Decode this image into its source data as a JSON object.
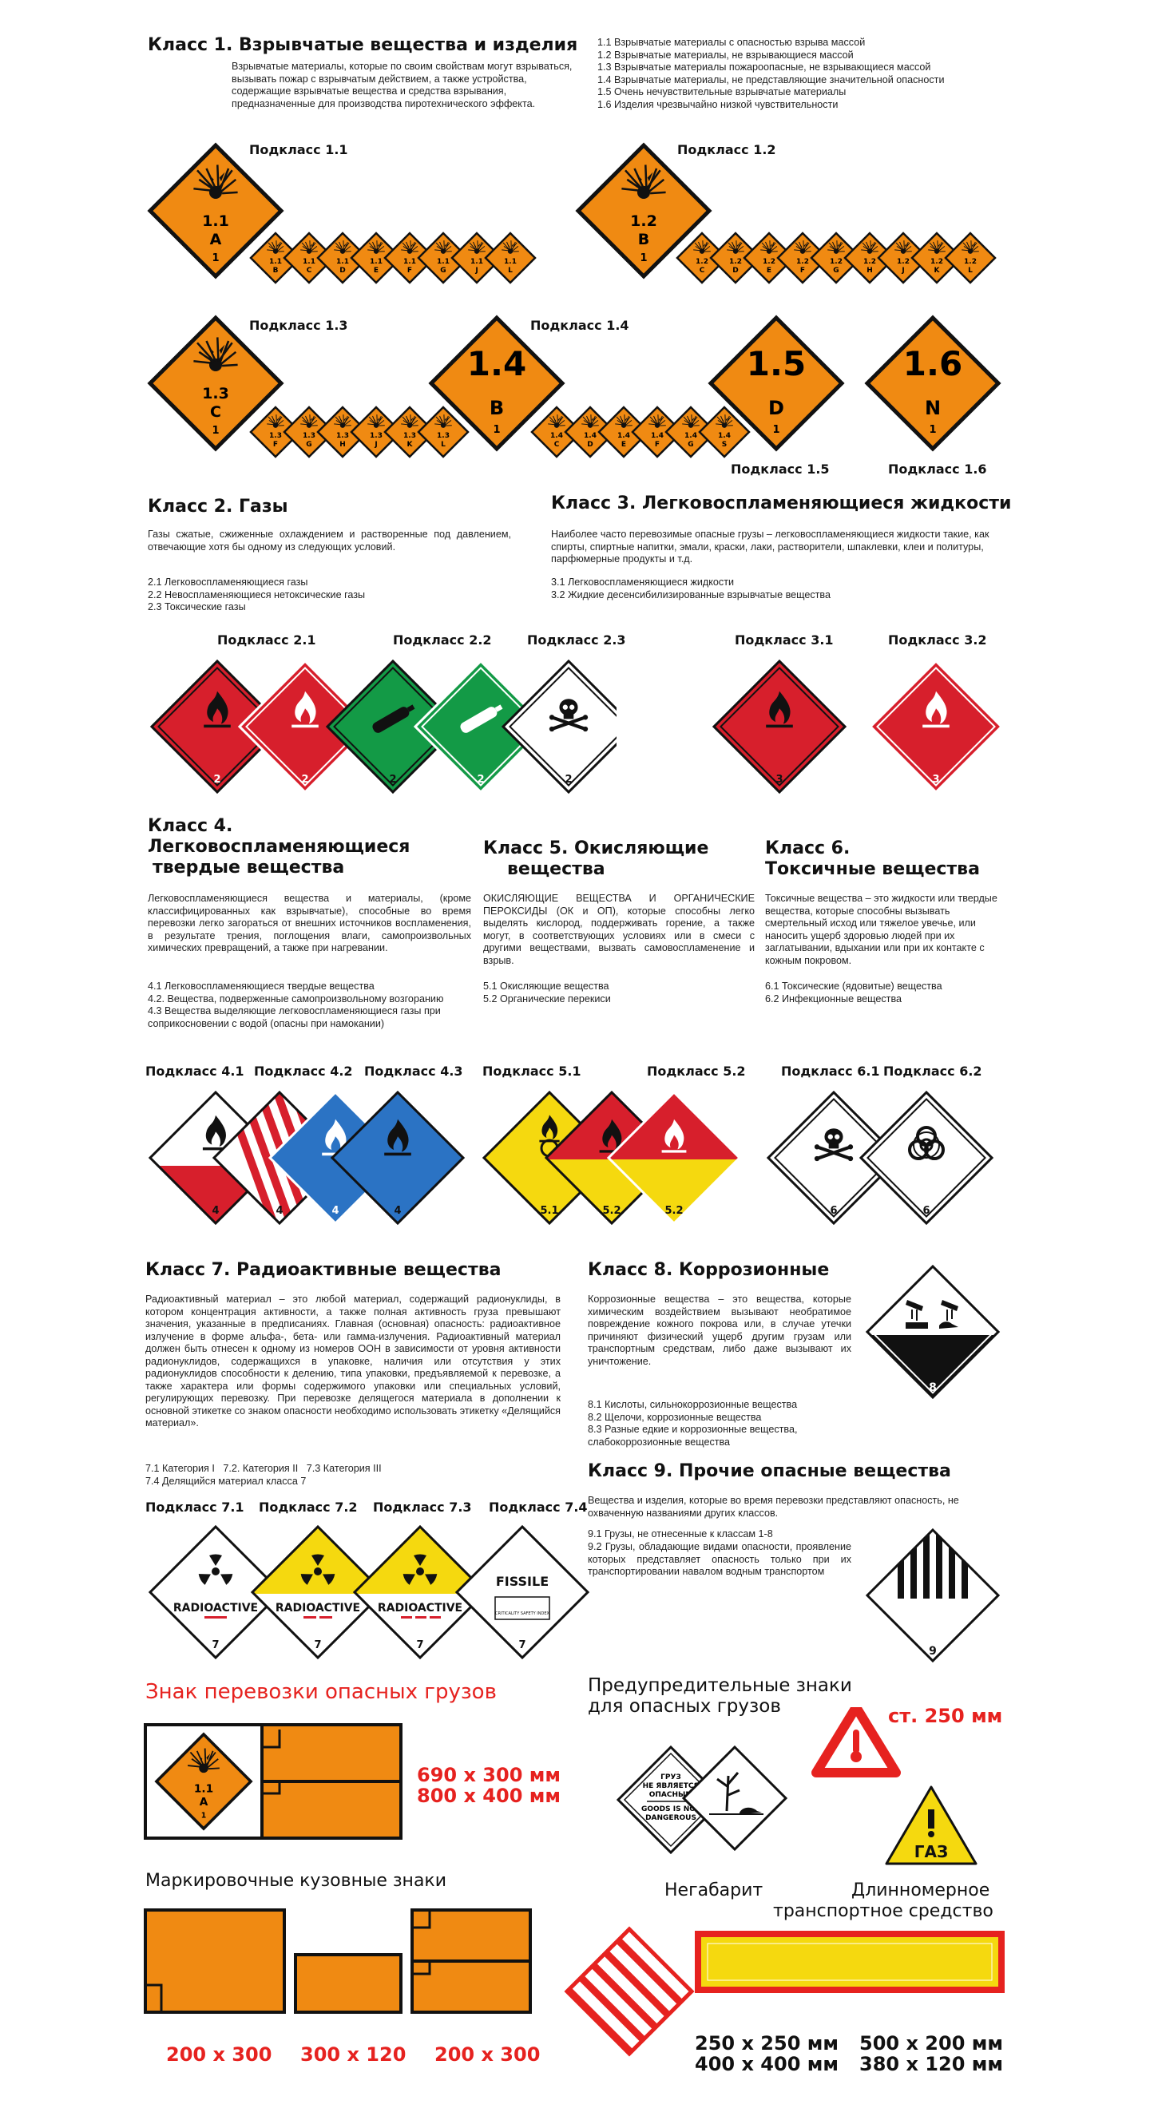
{
  "class1": {
    "title": "Класс 1. Взрывчатые вещества и изделия",
    "desc": "Взрывчатые материалы, которые по своим свойствам могут взрываться, вызывать пожар с взрывчатым действием, а также устройства, содержащие взрывчатые вещества и средства взрывания, предназначенные для производства пиротехнического эффекта.",
    "list": [
      "1.1 Взрывчатые материалы с опасностью взрыва массой",
      "1.2 Взрывчатые материалы, не взрывающиеся массой",
      "1.3 Взрывчатые материалы пожароопасные, не взрывающиеся массой",
      "1.4 Взрывчатые материалы, не представляющие значительной опасности",
      "1.5 Очень нечувствительные взрывчатые материалы",
      "1.6 Изделия чрезвычайно низкой чувствительности"
    ],
    "sub11": "Подкласс 1.1",
    "sub12": "Подкласс 1.2",
    "sub13": "Подкласс 1.3",
    "sub14": "Подкласс 1.4",
    "sub15": "Подкласс 1.5",
    "sub16": "Подкласс 1.6",
    "sign11": {
      "num": "1.1",
      "letter": "A",
      "cls": "1"
    },
    "sign12": {
      "num": "1.2",
      "letter": "B",
      "cls": "1"
    },
    "sign13": {
      "num": "1.3",
      "letter": "C",
      "cls": "1"
    },
    "sign14": {
      "num": "1.4",
      "letter": "B",
      "cls": "1"
    },
    "sign15": {
      "num": "1.5",
      "letter": "D",
      "cls": "1"
    },
    "sign16": {
      "num": "1.6",
      "letter": "N",
      "cls": "1"
    },
    "mini11": [
      "B",
      "C",
      "D",
      "E",
      "F",
      "G",
      "J",
      "L"
    ],
    "mini12": [
      "C",
      "D",
      "E",
      "F",
      "G",
      "H",
      "J",
      "K",
      "L"
    ],
    "mini13": [
      "F",
      "G",
      "H",
      "J",
      "K",
      "L"
    ],
    "mini14": [
      "C",
      "D",
      "E",
      "F",
      "G",
      "S"
    ]
  },
  "class2": {
    "title": "Класс 2. Газы",
    "desc": "Газы сжатые, сжиженные охлаждением и растворенные под давлением, отвечающие хотя бы одному из следующих условий.",
    "list": [
      "2.1 Легковоспламеняющиеся газы",
      "2.2 Невоспламеняющиеся нетоксические газы",
      "2.3 Токсические газы"
    ],
    "sub21": "Подкласс 2.1",
    "sub22": "Подкласс 2.2",
    "sub23": "Подкласс 2.3",
    "num": "2"
  },
  "class3": {
    "title": "Класс 3. Легковоспламеняющиеся жидкости",
    "desc": "Наиболее часто перевозимые опасные грузы – легковоспламеняющиеся жидкости такие, как спирты, спиртные напитки, эмали, краски, лаки, растворители, шпаклевки, клеи и политуры, парфюмерные продукты и т.д.",
    "list": [
      "3.1 Легковоспламеняющиеся жидкости",
      "3.2 Жидкие десенсибилизированные взрывчатые вещества"
    ],
    "sub31": "Подкласс 3.1",
    "sub32": "Подкласс 3.2",
    "num": "3"
  },
  "class4": {
    "title1": "Класс 4.",
    "title2": "Легковоспламеняющиеся",
    "title3": "твердые вещества",
    "desc": "Легковоспламеняющиеся вещества и материалы, (кроме классифицированных как взрывчатые), способные во время перевозки легко загораться от внешних источников воспламенения, в результате трения, поглощения влаги, самопроизвольных химических превращений, а также при нагревании.",
    "list": [
      "4.1 Легковоспламеняющиеся твердые вещества",
      "4.2. Вещества, подверженные самопроизвольному возгоранию",
      "4.3 Вещества выделяющие легковоспламеняющиеся газы при соприкосновении с водой (опасны при намокании)"
    ],
    "sub41": "Подкласс 4.1",
    "sub42": "Подкласс 4.2",
    "sub43": "Подкласс 4.3",
    "num": "4"
  },
  "class5": {
    "title1": "Класс 5. Окисляющие",
    "title2": "вещества",
    "desc": "ОКИСЛЯЮЩИЕ ВЕЩЕСТВА И ОРГАНИЧЕСКИЕ ПЕРОКСИДЫ (ОК и ОП), которые способны легко выделять кислород, поддерживать горение, а также могут, в соответствующих условиях или в смеси с другими веществами, вызвать самовоспламенение и взрыв.",
    "list": [
      "5.1 Окисляющие вещества",
      "5.2 Органические перекиси"
    ],
    "sub51": "Подкласс 5.1",
    "sub52": "Подкласс 5.2",
    "n51": "5.1",
    "n52": "5.2"
  },
  "class6": {
    "title1": "Класс 6.",
    "title2": "Токсичные вещества",
    "desc": "Токсичные вещества – это жидкости или твердые вещества, которые способны вызывать смертельный исход или тяжелое увечье, или наносить ущерб здоровью людей при их заглатывании, вдыхании или при их контакте с кожным покровом.",
    "list": [
      "6.1 Токсические (ядовитые) вещества",
      "6.2 Инфекционные вещества"
    ],
    "sub61": "Подкласс 6.1",
    "sub62": "Подкласс 6.2",
    "num": "6"
  },
  "class7": {
    "title": "Класс 7. Радиоактивные вещества",
    "desc": "Радиоактивный материал – это любой материал, содержащий радионуклиды, в котором концентрация активности, а также полная активность груза превышают значения, указанные в предписаниях. Главная (основная) опасность: радиоактивное излучение в форме альфа-, бета- или гамма-излучения. Радиоактивный материал должен быть отнесен к одному из номеров ООН в зависимости от уровня активности радионуклидов, содержащихся в упаковке, наличия или отсутствия у этих радионуклидов способности к делению, типа упаковки, предъявляемой к перевозке, а также характера или формы содержимого упаковки или специальных условий, регулирующих перевозку. При перевозке делящегося материала в дополнении к основной этикетке со знаком опасности необходимо использовать этикетку «Делящийся материал».",
    "list1": "7.1 Категория I   7.2. Категория II   7.3 Категория III",
    "list2": "7.4 Делящийся материал класса 7",
    "sub71": "Подкласс 7.1",
    "sub72": "Подкласс 7.2",
    "sub73": "Подкласс 7.3",
    "sub74": "Подкласс 7.4",
    "radioactive": "RADIOACTIVE",
    "fissile": "FISSILE",
    "criticality": "CRITICALITY SAFETY INDEX",
    "num": "7"
  },
  "class8": {
    "title": "Класс 8. Коррозионные",
    "desc": "Коррозионные вещества – это вещества, которые химическим воздействием вызывают необратимое повреждение кожного покрова или, в случае утечки причиняют физический ущерб другим грузам или транспортным средствам, либо даже вызывают их уничтожение.",
    "list": [
      "8.1 Кислоты, сильнокоррозионные вещества",
      "8.2 Щелочи, коррозионные вещества",
      "8.3 Разные едкие и коррозионные вещества, слабокоррозионные вещества"
    ],
    "num": "8"
  },
  "class9": {
    "title": "Класс 9. Прочие опасные вещества",
    "desc": "Вещества и изделия, которые во время перевозки представляют опасность, не охваченную названиями других классов.",
    "list1": "9.1 Грузы, не отнесенные к классам 1-8",
    "list2": "9.2 Грузы, обладающие видами опасности, проявление которых представляет опасность только при их транспортировании навалом водным транспортом",
    "num": "9"
  },
  "transport": {
    "title": "Знак перевозки опасных грузов",
    "size1": "690 x 300 мм",
    "size2": "800 x 400 мм",
    "sign": {
      "num": "1.1",
      "letter": "A",
      "cls": "1"
    }
  },
  "warning": {
    "title1": "Предупредительные знаки",
    "title2": "для опасных грузов",
    "size": "ст. 250 мм",
    "nd1": "ГРУЗ",
    "nd2": "НЕ ЯВЛЯЕТСЯ",
    "nd3": "ОПАСНЫМ",
    "nd4": "GOODS IS NOT",
    "nd5": "DANGEROUS",
    "gas": "ГАЗ"
  },
  "body_marks": {
    "title": "Маркировочные кузовные знаки",
    "s1": "200 x 300",
    "s2": "300 x 120",
    "s3": "200 x 300"
  },
  "oversize": {
    "title": "Негабарит",
    "s1": "250 x 250 мм",
    "s2": "400 x 400 мм"
  },
  "long_vehicle": {
    "title1": "Длинномерное",
    "title2": "транспортное средство",
    "s1": "500 x 200 мм",
    "s2": "380 x 120 мм"
  },
  "colors": {
    "orange": "#f08a12",
    "red": "#d71f2c",
    "green": "#139a46",
    "blue": "#2b73c4",
    "yellow": "#f5d90f",
    "accent": "#e6221f"
  }
}
